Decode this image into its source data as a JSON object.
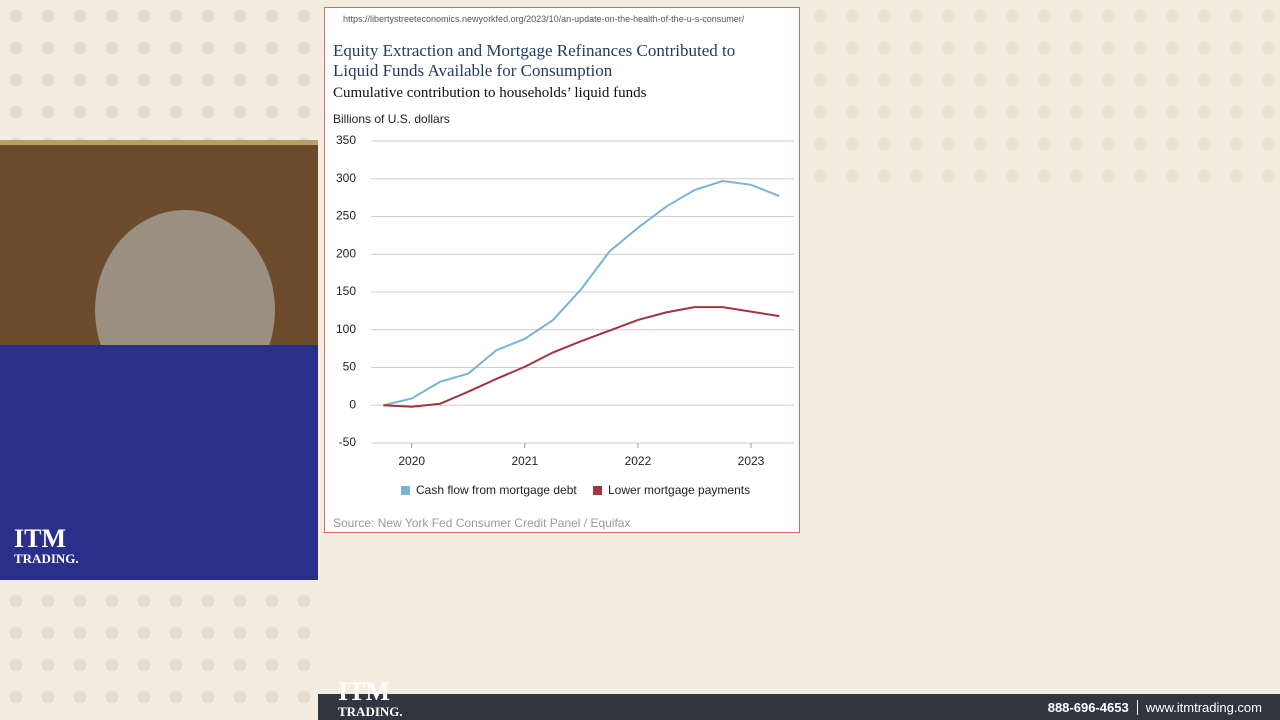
{
  "url": "https://libertystreeteconomics.newyorkfed.org/2023/10/an-update-on-the-health-of-the-u-s-consumer/",
  "logo": {
    "top": "ITM",
    "bottom": "TRADING."
  },
  "footer": {
    "phone": "888-696-4653",
    "site": "www.itmtrading.com"
  },
  "chart_data": {
    "type": "line",
    "title": "Equity Extraction and Mortgage Refinances Contributed to Liquid Funds Available for Consumption",
    "subtitle": "Cumulative contribution to households’ liquid funds",
    "y_label": "Billions of U.S. dollars",
    "source": "Source: New York Fed Consumer Credit Panel / Equifax",
    "x": [
      2019.75,
      2020,
      2020.25,
      2020.5,
      2020.75,
      2021,
      2021.25,
      2021.5,
      2021.75,
      2022,
      2022.25,
      2022.5,
      2022.75,
      2023,
      2023.25
    ],
    "xlim": [
      2019.64,
      2023.38
    ],
    "xticks": [
      2020,
      2021,
      2022,
      2023
    ],
    "ylim": [
      -50,
      350
    ],
    "yticks": [
      -50,
      0,
      50,
      100,
      150,
      200,
      250,
      300,
      350
    ],
    "grid": true,
    "series": [
      {
        "name": "Cash flow from mortgage debt",
        "color": "#7ab3d6",
        "values": [
          0,
          9,
          31,
          42,
          73,
          88,
          113,
          154,
          204,
          235,
          263,
          285,
          297,
          292,
          277
        ]
      },
      {
        "name": "Lower mortgage payments",
        "color": "#a3333f",
        "values": [
          0,
          -2,
          2,
          18,
          35,
          51,
          70,
          85,
          99,
          113,
          123,
          130,
          130,
          124,
          118
        ]
      }
    ]
  }
}
